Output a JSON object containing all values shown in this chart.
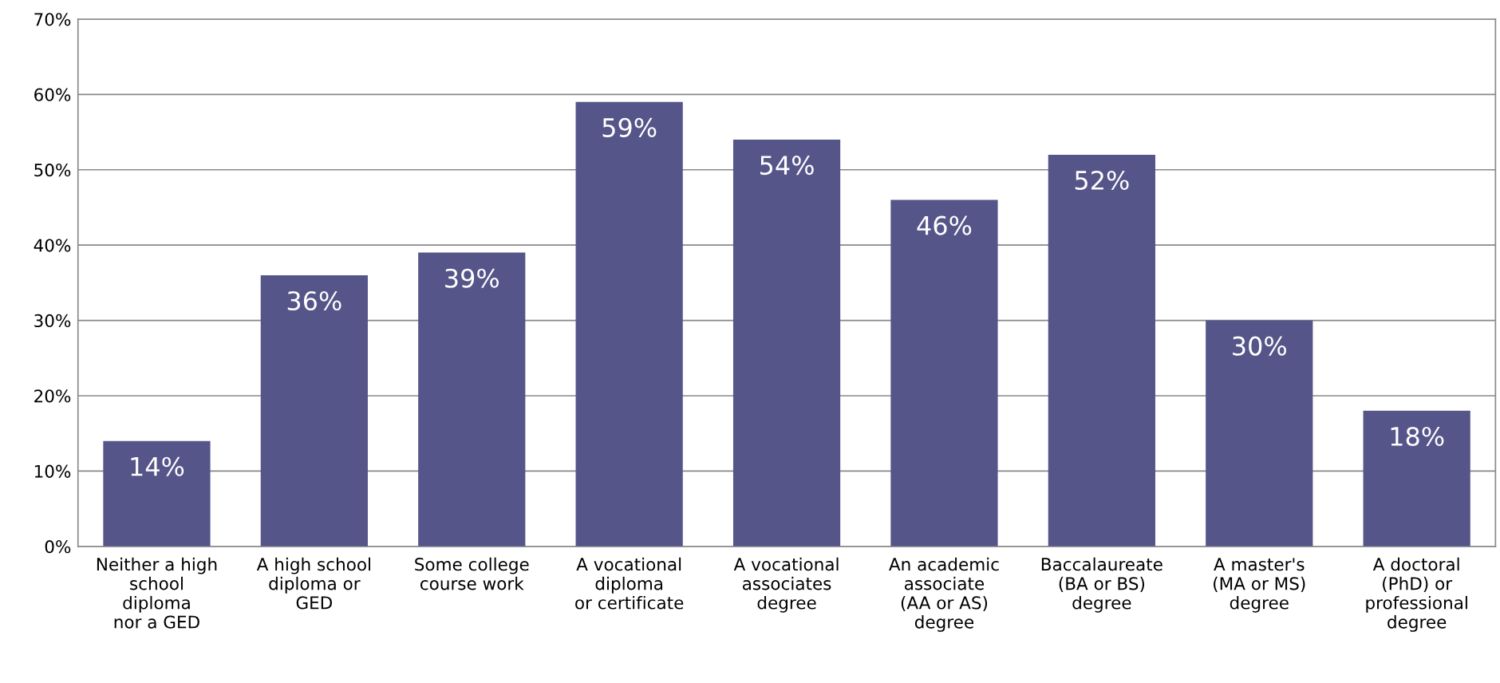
{
  "chart_data": {
    "type": "bar",
    "categories": [
      "Neither a high\nschool\ndiploma\nnor a GED",
      "A high school\ndiploma or\nGED",
      "Some college\ncourse work",
      "A vocational\ndiploma\nor certificate",
      "A vocational\nassociates\ndegree",
      "An academic\nassociate\n(AA or AS)\ndegree",
      "Baccalaureate\n(BA or BS)\ndegree",
      "A master's\n(MA or MS)\ndegree",
      "A doctoral\n(PhD) or\nprofessional\ndegree"
    ],
    "values": [
      14,
      36,
      39,
      59,
      54,
      46,
      52,
      30,
      18
    ],
    "value_labels": [
      "14%",
      "36%",
      "39%",
      "59%",
      "54%",
      "46%",
      "52%",
      "30%",
      "18%"
    ],
    "color": "#55558a",
    "ylim": [
      0,
      70
    ],
    "yticks": [
      {
        "value": 0,
        "label": "0%"
      },
      {
        "value": 10,
        "label": "10%"
      },
      {
        "value": 20,
        "label": "20%"
      },
      {
        "value": 30,
        "label": "30%"
      },
      {
        "value": 40,
        "label": "40%"
      },
      {
        "value": 50,
        "label": "50%"
      },
      {
        "value": 60,
        "label": "60%"
      },
      {
        "value": 70,
        "label": "70%"
      }
    ],
    "grid": "y"
  }
}
